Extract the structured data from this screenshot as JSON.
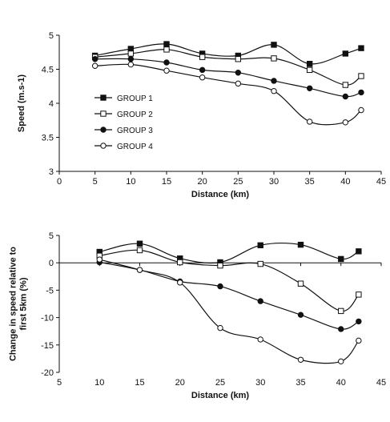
{
  "chart_data": [
    {
      "type": "line",
      "title": "",
      "xlabel": "Distance (km)",
      "ylabel": "Speed (m.s-1)",
      "xlim": [
        0,
        45
      ],
      "ylim": [
        3,
        5
      ],
      "xticks": [
        0,
        5,
        10,
        15,
        20,
        25,
        30,
        35,
        40,
        45
      ],
      "yticks": [
        3,
        3.5,
        4,
        4.5,
        5
      ],
      "ytick_labels": [
        "3",
        "3.5",
        "4",
        "4.5",
        "5"
      ],
      "grid": false,
      "legend_position": "left, inside plot",
      "x": [
        5,
        10,
        15,
        20,
        25,
        30,
        35,
        40,
        42.2
      ],
      "series": [
        {
          "name": "GROUP 1",
          "marker": "filled-square",
          "values": [
            4.7,
            4.8,
            4.87,
            4.73,
            4.7,
            4.86,
            4.58,
            4.73,
            4.81
          ]
        },
        {
          "name": "GROUP 2",
          "marker": "open-square",
          "values": [
            4.68,
            4.73,
            4.79,
            4.68,
            4.65,
            4.66,
            4.49,
            4.27,
            4.4
          ]
        },
        {
          "name": "GROUP 3",
          "marker": "filled-circle",
          "values": [
            4.65,
            4.65,
            4.6,
            4.49,
            4.45,
            4.33,
            4.22,
            4.1,
            4.16
          ]
        },
        {
          "name": "GROUP 4",
          "marker": "open-circle",
          "values": [
            4.55,
            4.57,
            4.48,
            4.38,
            4.29,
            4.18,
            3.73,
            3.72,
            3.9
          ]
        }
      ]
    },
    {
      "type": "line",
      "title": "",
      "xlabel": "Distance (km)",
      "ylabel": "Change in speed relative to first 5km (%)",
      "ylabel_lines": [
        "Change in speed relative to",
        "first 5km (%)"
      ],
      "xlim": [
        5,
        45
      ],
      "ylim": [
        -20,
        5
      ],
      "xticks": [
        5,
        10,
        15,
        20,
        25,
        30,
        35,
        40,
        45
      ],
      "yticks": [
        -20,
        -15,
        -10,
        -5,
        0,
        5
      ],
      "grid": false,
      "legend_position": "none",
      "x": [
        10,
        15,
        20,
        25,
        30,
        35,
        40,
        42.2
      ],
      "series": [
        {
          "marker": "filled-square",
          "values": [
            2.0,
            3.5,
            0.8,
            0.1,
            3.2,
            3.3,
            0.7,
            2.1
          ]
        },
        {
          "marker": "open-square",
          "values": [
            1.3,
            2.3,
            0.1,
            -0.5,
            -0.2,
            -3.8,
            -8.8,
            -5.8
          ]
        },
        {
          "marker": "filled-circle",
          "values": [
            0.1,
            -1.3,
            -3.4,
            -4.3,
            -7.0,
            -9.5,
            -12.1,
            -10.7
          ]
        },
        {
          "marker": "open-circle",
          "values": [
            0.6,
            -1.3,
            -3.6,
            -11.9,
            -14.0,
            -17.7,
            -18.0,
            -14.2
          ]
        }
      ]
    }
  ]
}
